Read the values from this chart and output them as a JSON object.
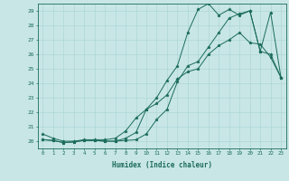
{
  "title": "",
  "xlabel": "Humidex (Indice chaleur)",
  "ylabel": "",
  "xlim": [
    -0.5,
    23.5
  ],
  "ylim": [
    19.5,
    29.5
  ],
  "yticks": [
    20,
    21,
    22,
    23,
    24,
    25,
    26,
    27,
    28,
    29
  ],
  "xticks": [
    0,
    1,
    2,
    3,
    4,
    5,
    6,
    7,
    8,
    9,
    10,
    11,
    12,
    13,
    14,
    15,
    16,
    17,
    18,
    19,
    20,
    21,
    22,
    23
  ],
  "background_color": "#c8e6e6",
  "line_color": "#1a6b5a",
  "series": [
    [
      20.1,
      20.05,
      19.9,
      19.95,
      20.05,
      20.05,
      20.0,
      20.0,
      20.05,
      20.1,
      20.5,
      21.5,
      22.2,
      24.1,
      25.2,
      25.5,
      26.5,
      27.5,
      28.5,
      28.8,
      29.0,
      26.2,
      26.0,
      24.4
    ],
    [
      20.1,
      20.05,
      19.9,
      19.95,
      20.05,
      20.05,
      20.0,
      20.0,
      20.2,
      20.6,
      22.2,
      23.0,
      24.2,
      25.2,
      27.5,
      29.1,
      29.5,
      28.7,
      29.1,
      28.7,
      29.0,
      26.2,
      28.9,
      24.4
    ],
    [
      20.5,
      20.2,
      20.0,
      20.0,
      20.1,
      20.1,
      20.1,
      20.2,
      20.7,
      21.6,
      22.2,
      22.6,
      23.2,
      24.3,
      24.8,
      25.0,
      26.0,
      26.6,
      27.0,
      27.5,
      26.8,
      26.7,
      25.8,
      24.4
    ]
  ]
}
